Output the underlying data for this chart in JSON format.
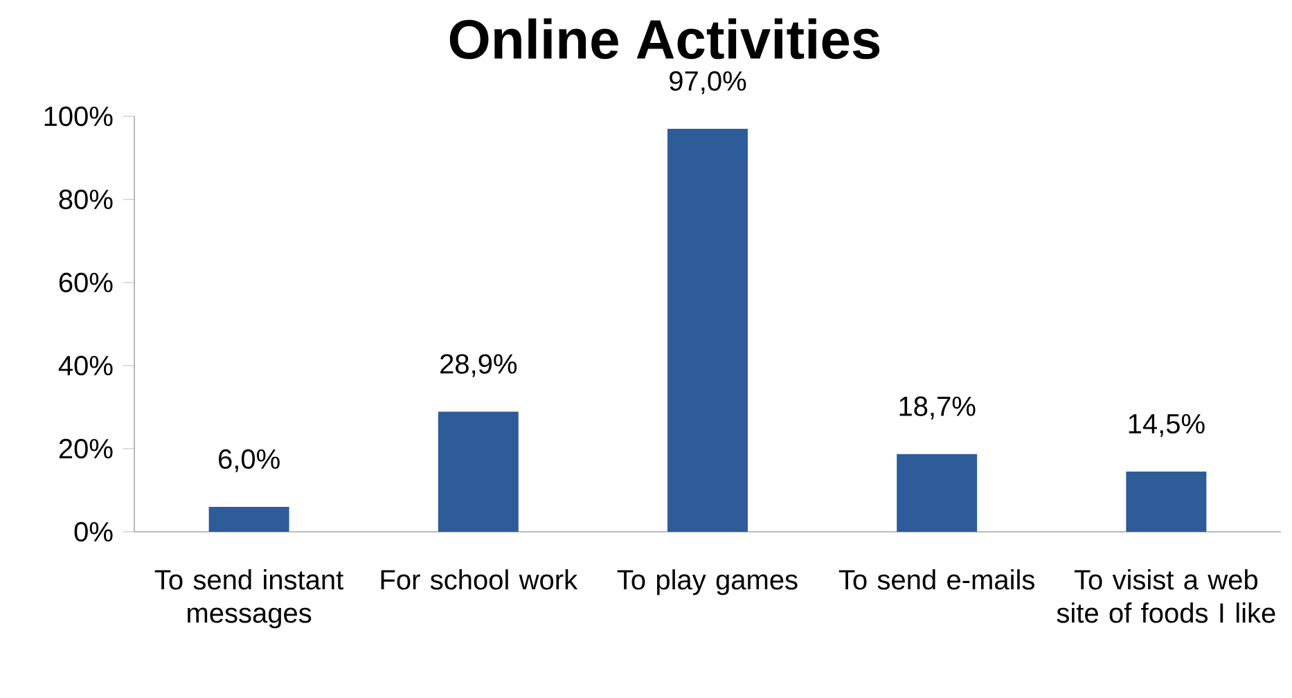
{
  "chart_data": {
    "type": "bar",
    "title": "Online Activities",
    "categories": [
      "To send instant messages",
      "For school work",
      "To play games",
      "To send e-mails",
      "To visist a web site of foods I like"
    ],
    "values": [
      6.0,
      28.9,
      97.0,
      18.7,
      14.5
    ],
    "value_labels": [
      "6,0%",
      "28,9%",
      "97,0%",
      "18,7%",
      "14,5%"
    ],
    "color": "#2e5c99",
    "ylim": [
      0,
      100
    ],
    "yticks": [
      {
        "value": 0,
        "label": "0%"
      },
      {
        "value": 20,
        "label": "20%"
      },
      {
        "value": 40,
        "label": "40%"
      },
      {
        "value": 60,
        "label": "60%"
      },
      {
        "value": 80,
        "label": "80%"
      },
      {
        "value": 100,
        "label": "100%"
      }
    ],
    "grid": false
  }
}
